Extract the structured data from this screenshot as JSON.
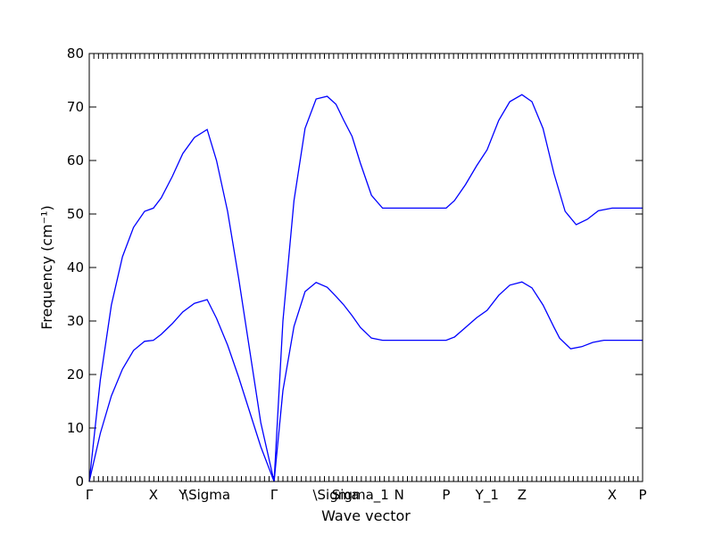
{
  "chart_data": {
    "type": "line",
    "xlabel": "Wave vector",
    "ylabel": "Frequency (cm⁻¹)",
    "ylim": [
      0,
      80
    ],
    "yticks": [
      0,
      10,
      20,
      30,
      40,
      50,
      60,
      70,
      80
    ],
    "xlim": [
      0,
      1
    ],
    "grid": false,
    "x_tick_labels": [
      {
        "label": "Γ",
        "x": 0.0
      },
      {
        "label": "X",
        "x": 0.116
      },
      {
        "label": "Y",
        "x": 0.169
      },
      {
        "label": "\\Sigma",
        "x": 0.213
      },
      {
        "label": "Γ",
        "x": 0.334
      },
      {
        "label": "\\Sigma",
        "x": 0.446
      },
      {
        "label": "Sigma_1",
        "x": 0.49
      },
      {
        "label": "N",
        "x": 0.56
      },
      {
        "label": "P",
        "x": 0.645
      },
      {
        "label": "Y_1",
        "x": 0.719
      },
      {
        "label": "Z",
        "x": 0.782
      },
      {
        "label": "X",
        "x": 0.945
      },
      {
        "label": "P",
        "x": 1.0
      }
    ],
    "series": [
      {
        "color": "#0000ff",
        "x": [
          0.0,
          0.02,
          0.04,
          0.06,
          0.08,
          0.1,
          0.116,
          0.13,
          0.15,
          0.169,
          0.19,
          0.213,
          0.23,
          0.25,
          0.27,
          0.29,
          0.31,
          0.334,
          0.35,
          0.37,
          0.39,
          0.41,
          0.43,
          0.446,
          0.46,
          0.475,
          0.49,
          0.51,
          0.53,
          0.55,
          0.56,
          0.6,
          0.645,
          0.66,
          0.68,
          0.7,
          0.719,
          0.74,
          0.76,
          0.782,
          0.8,
          0.82,
          0.84,
          0.85,
          0.87,
          0.89,
          0.91,
          0.93,
          0.945,
          0.97,
          1.0
        ],
        "y": [
          0.0,
          9.0,
          16.0,
          21.0,
          24.5,
          26.2,
          26.4,
          27.5,
          29.5,
          31.7,
          33.3,
          34.0,
          30.5,
          25.5,
          19.5,
          13.0,
          6.5,
          0.0,
          17.0,
          29.0,
          35.5,
          37.2,
          36.3,
          34.6,
          33.0,
          31.0,
          28.8,
          26.8,
          26.4,
          26.4,
          26.4,
          26.4,
          26.4,
          27.0,
          28.8,
          30.6,
          32.0,
          34.8,
          36.7,
          37.3,
          36.2,
          33.0,
          28.8,
          26.8,
          24.8,
          25.2,
          26.0,
          26.4,
          26.4,
          26.4,
          26.4
        ]
      },
      {
        "color": "#0000ff",
        "x": [
          0.0,
          0.02,
          0.04,
          0.06,
          0.08,
          0.1,
          0.116,
          0.13,
          0.15,
          0.169,
          0.19,
          0.213,
          0.23,
          0.25,
          0.27,
          0.29,
          0.31,
          0.334,
          0.35,
          0.37,
          0.39,
          0.41,
          0.43,
          0.446,
          0.46,
          0.475,
          0.49,
          0.51,
          0.53,
          0.55,
          0.56,
          0.6,
          0.645,
          0.66,
          0.68,
          0.7,
          0.719,
          0.74,
          0.76,
          0.782,
          0.8,
          0.82,
          0.84,
          0.86,
          0.88,
          0.9,
          0.92,
          0.945,
          0.97,
          1.0
        ],
        "y": [
          0.0,
          19.0,
          33.0,
          42.0,
          47.5,
          50.5,
          51.1,
          53.0,
          57.0,
          61.3,
          64.3,
          65.8,
          60.0,
          50.5,
          38.0,
          24.5,
          11.0,
          0.0,
          30.0,
          52.5,
          66.0,
          71.5,
          72.0,
          70.5,
          67.5,
          64.5,
          59.5,
          53.5,
          51.1,
          51.1,
          51.1,
          51.1,
          51.1,
          52.5,
          55.5,
          59.0,
          62.0,
          67.5,
          71.0,
          72.3,
          71.0,
          66.0,
          57.5,
          50.5,
          48.0,
          49.0,
          50.6,
          51.1,
          51.1,
          51.1
        ]
      }
    ]
  }
}
